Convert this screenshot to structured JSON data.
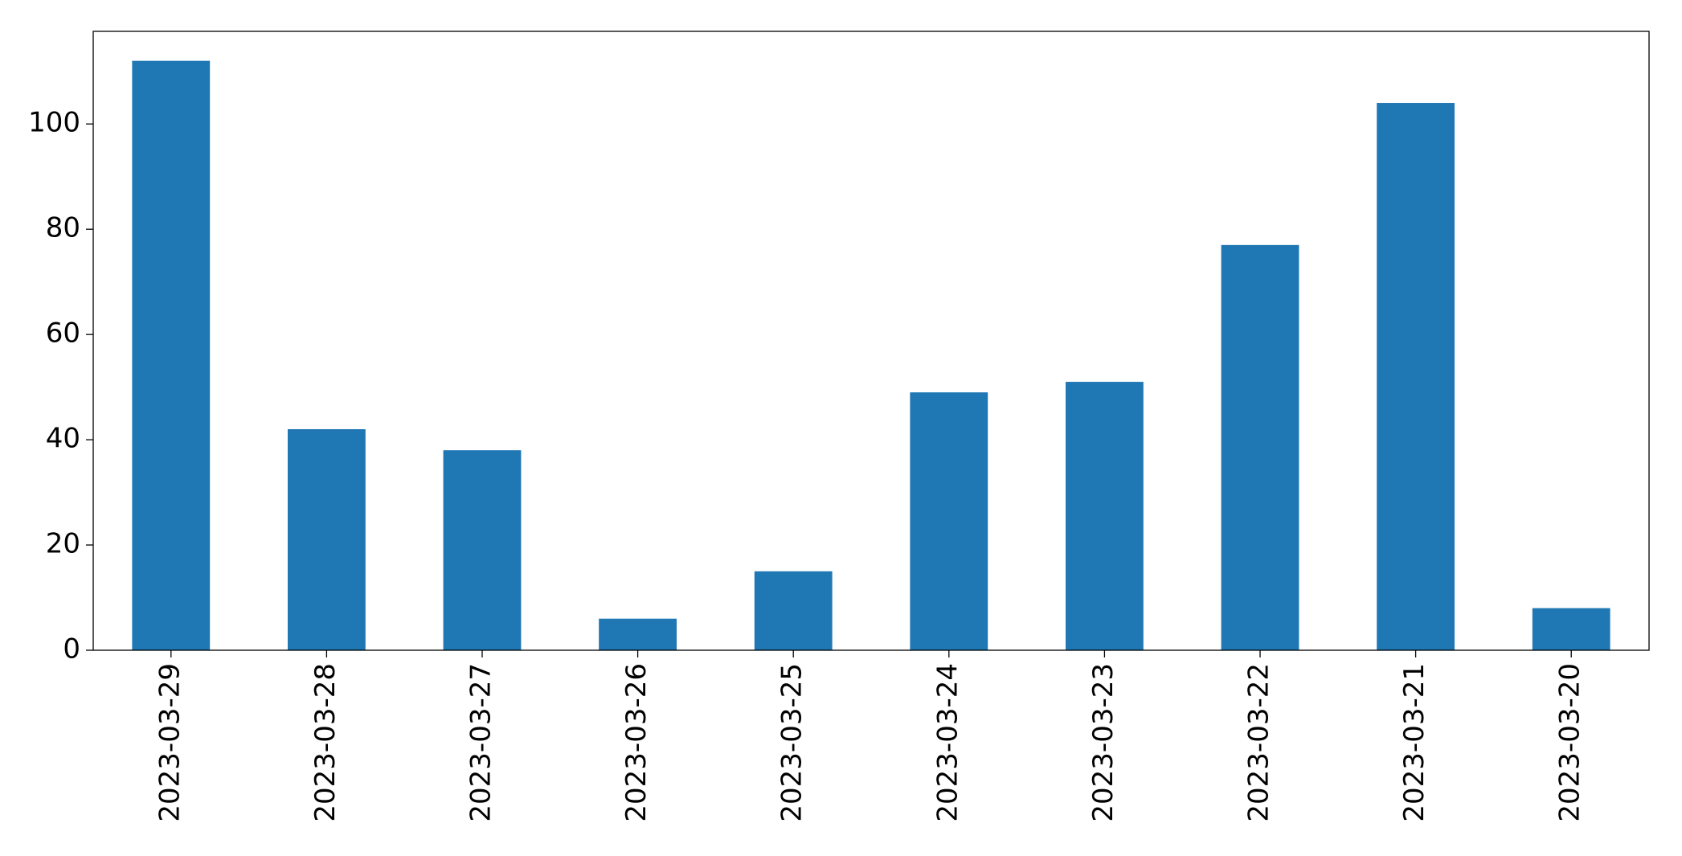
{
  "chart_data": {
    "type": "bar",
    "categories": [
      "2023-03-29",
      "2023-03-28",
      "2023-03-27",
      "2023-03-26",
      "2023-03-25",
      "2023-03-24",
      "2023-03-23",
      "2023-03-22",
      "2023-03-21",
      "2023-03-20"
    ],
    "values": [
      112,
      42,
      38,
      6,
      15,
      49,
      51,
      77,
      104,
      8
    ],
    "color": "#1f77b4",
    "ylim": [
      0,
      117.6
    ],
    "yticks": [
      0,
      20,
      40,
      60,
      80,
      100
    ],
    "grid": false
  }
}
